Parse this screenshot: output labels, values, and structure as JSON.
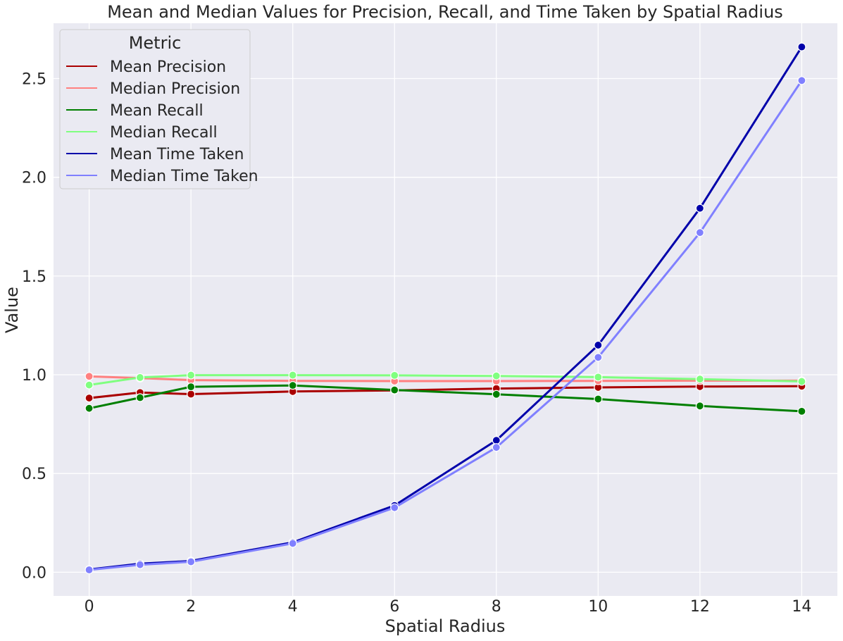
{
  "chart_data": {
    "type": "line",
    "title": "Mean and Median Values for Precision, Recall, and Time Taken by Spatial Radius",
    "xlabel": "Spatial Radius",
    "ylabel": "Value",
    "xlim": [
      -0.7,
      14.7
    ],
    "ylim": [
      -0.12,
      2.78
    ],
    "x_ticks": [
      "0",
      "2",
      "4",
      "6",
      "8",
      "10",
      "12",
      "14"
    ],
    "y_ticks": [
      "0.0",
      "0.5",
      "1.0",
      "1.5",
      "2.0",
      "2.5"
    ],
    "grid": true,
    "legend": {
      "title": "Metric",
      "placement": "top-left"
    },
    "x": [
      0,
      1,
      2,
      4,
      6,
      8,
      10,
      12,
      14
    ],
    "series": [
      {
        "name": "Mean Precision",
        "color": "#aa0000",
        "values": [
          0.882,
          0.91,
          0.902,
          0.915,
          0.921,
          0.93,
          0.936,
          0.94,
          0.942
        ]
      },
      {
        "name": "Median Precision",
        "color": "#ff8080",
        "values": [
          0.992,
          0.983,
          0.973,
          0.969,
          0.968,
          0.968,
          0.969,
          0.97,
          0.97
        ]
      },
      {
        "name": "Mean Recall",
        "color": "#007f00",
        "values": [
          0.83,
          0.884,
          0.939,
          0.946,
          0.923,
          0.901,
          0.877,
          0.842,
          0.815
        ]
      },
      {
        "name": "Median Recall",
        "color": "#80ff80",
        "values": [
          0.948,
          0.986,
          0.998,
          0.998,
          0.997,
          0.994,
          0.988,
          0.978,
          0.966
        ]
      },
      {
        "name": "Mean Time Taken",
        "color": "#0000aa",
        "values": [
          0.014,
          0.043,
          0.057,
          0.151,
          0.338,
          0.668,
          1.15,
          1.843,
          2.66
        ]
      },
      {
        "name": "Median Time Taken",
        "color": "#8080ff",
        "values": [
          0.012,
          0.038,
          0.053,
          0.146,
          0.327,
          0.632,
          1.088,
          1.72,
          2.49
        ]
      }
    ]
  }
}
